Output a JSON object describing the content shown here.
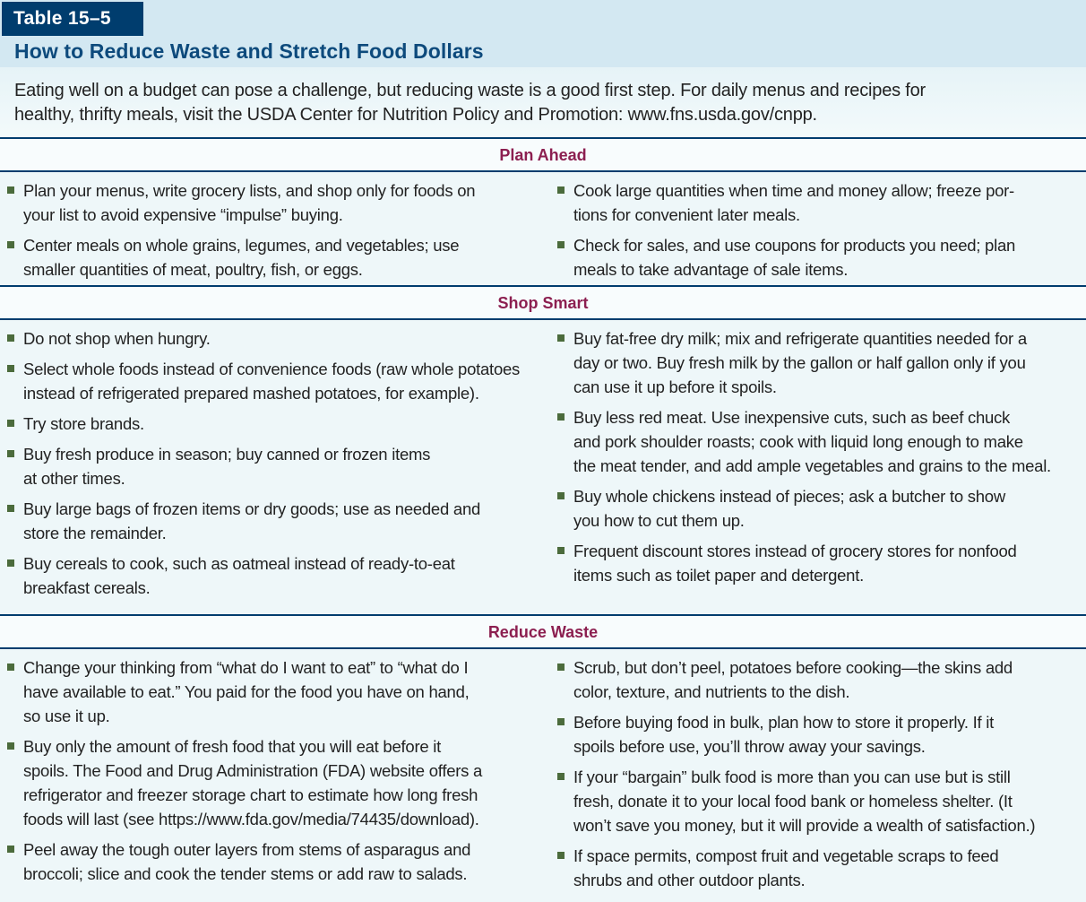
{
  "header": {
    "tag": "Table 15–5",
    "title": "How to Reduce Waste and Stretch Food Dollars"
  },
  "intro": "Eating well on a budget can pose a challenge, but reducing waste is a good first step. For daily menus and recipes for\nhealthy, thrifty meals, visit the USDA Center for Nutrition Policy and Promotion: www.fns.usda.gov/cnpp.",
  "sections": [
    {
      "title": "Plan Ahead",
      "left": [
        "Plan your menus, write grocery lists, and shop only for foods on\nyour list to avoid expensive “impulse” buying.",
        "Center meals on whole grains, legumes, and vegetables; use\nsmaller quantities of meat, poultry, fish, or eggs."
      ],
      "right": [
        "Cook large quantities when time and money allow; freeze por-\ntions for convenient later meals.",
        "Check for sales, and use coupons for products you need; plan\nmeals to take advantage of sale items."
      ]
    },
    {
      "title": "Shop Smart",
      "left": [
        "Do not shop when hungry.",
        "Select whole foods instead of convenience foods (raw whole potatoes\ninstead of refrigerated prepared mashed potatoes, for example).",
        "Try store brands.",
        "Buy fresh produce in season; buy canned or frozen items\nat other times.",
        "Buy large bags of frozen items or dry goods; use as needed and\nstore the remainder.",
        "Buy cereals to cook, such as oatmeal instead of ready-to-eat\nbreakfast cereals."
      ],
      "right": [
        "Buy fat-free dry milk; mix and refrigerate quantities needed for a\nday or two. Buy fresh milk by the gallon or half gallon only if you\ncan use it up before it spoils.",
        "Buy less red meat. Use inexpensive cuts, such as beef chuck\nand pork shoulder roasts; cook with liquid long enough to make\nthe meat tender, and add ample vegetables and grains to the meal.",
        "Buy whole chickens instead of pieces; ask a butcher to show\nyou how to cut them up.",
        "Frequent discount stores instead of grocery stores for nonfood\nitems such as toilet paper and detergent."
      ]
    },
    {
      "title": "Reduce Waste",
      "left": [
        "Change your thinking from “what do I want to eat” to “what do I\nhave available to eat.” You paid for the food you have on hand,\nso use it up.",
        "Buy only the amount of fresh food that you will eat before it\nspoils. The Food and Drug Administration (FDA) website offers a\nrefrigerator and freezer storage chart to estimate how long fresh\nfoods will last (see https://www.fda.gov/media/74435/download).",
        "Peel away the tough outer layers from stems of asparagus and\nbroccoli; slice and cook the tender stems or add raw to salads."
      ],
      "right": [
        "Scrub, but don’t peel, potatoes before cooking—the skins add\ncolor, texture, and nutrients to the dish.",
        "Before buying food in bulk, plan how to store it properly. If it\nspoils before use, you’ll throw away your savings.",
        "If your “bargain” bulk food is more than you can use but is still\nfresh, donate it to your local food bank or homeless shelter. (It\nwon’t save you money, but it will provide a wealth of satisfaction.)",
        "If space permits, compost fruit and vegetable scraps to feed\nshrubs and other outdoor plants."
      ]
    }
  ],
  "colors": {
    "tag_bg": "#003d6e",
    "title": "#0d4a7c",
    "section_title": "#8c1f50",
    "bullet": "#4b6b3c"
  }
}
